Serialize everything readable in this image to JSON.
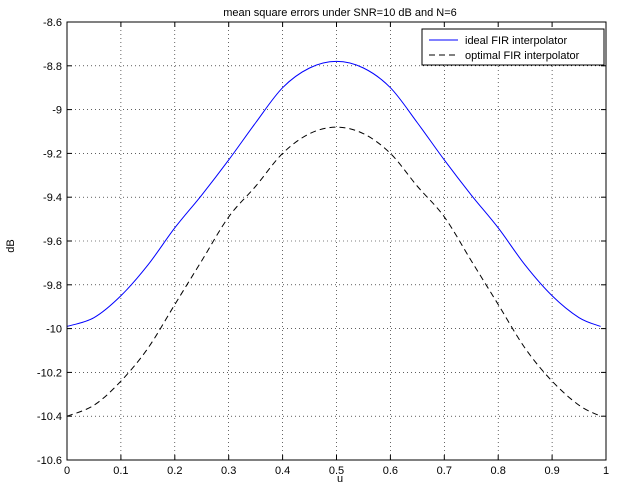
{
  "chart_data": {
    "type": "line",
    "title": "mean square errors under SNR=10 dB and N=6",
    "xlabel": "u",
    "ylabel": "dB",
    "xlim": [
      0,
      1
    ],
    "ylim": [
      -10.6,
      -8.6
    ],
    "xticks": [
      0,
      0.1,
      0.2,
      0.3,
      0.4,
      0.5,
      0.6,
      0.7,
      0.8,
      0.9,
      1
    ],
    "xtick_labels": [
      "0",
      "0.1",
      "0.2",
      "0.3",
      "0.4",
      "0.5",
      "0.6",
      "0.7",
      "0.8",
      "0.9",
      "1"
    ],
    "yticks": [
      -8.6,
      -8.8,
      -9,
      -9.2,
      -9.4,
      -9.6,
      -9.8,
      -10,
      -10.2,
      -10.4,
      -10.6
    ],
    "ytick_labels": [
      "-8.6",
      "-8.8",
      "-9",
      "-9.2",
      "-9.4",
      "-9.6",
      "-9.8",
      "-10",
      "-10.2",
      "-10.4",
      "-10.6"
    ],
    "grid": true,
    "legend_position": "top-right",
    "series": [
      {
        "name": "ideal FIR interpolator",
        "color": "#0000ff",
        "style": "solid",
        "x": [
          0,
          0.05,
          0.1,
          0.15,
          0.2,
          0.25,
          0.3,
          0.35,
          0.4,
          0.45,
          0.5,
          0.55,
          0.6,
          0.65,
          0.7,
          0.75,
          0.8,
          0.85,
          0.9,
          0.95,
          0.99
        ],
        "y": [
          -9.99,
          -9.95,
          -9.85,
          -9.71,
          -9.54,
          -9.39,
          -9.23,
          -9.06,
          -8.9,
          -8.81,
          -8.78,
          -8.81,
          -8.9,
          -9.06,
          -9.23,
          -9.39,
          -9.54,
          -9.71,
          -9.85,
          -9.95,
          -9.99
        ]
      },
      {
        "name": "optimal FIR interpolator",
        "color": "#000000",
        "style": "dashed",
        "x": [
          0,
          0.05,
          0.1,
          0.15,
          0.2,
          0.25,
          0.3,
          0.35,
          0.4,
          0.45,
          0.5,
          0.55,
          0.6,
          0.65,
          0.7,
          0.75,
          0.8,
          0.85,
          0.9,
          0.95,
          0.99
        ],
        "y": [
          -10.4,
          -10.35,
          -10.24,
          -10.09,
          -9.89,
          -9.69,
          -9.49,
          -9.35,
          -9.2,
          -9.11,
          -9.08,
          -9.11,
          -9.2,
          -9.35,
          -9.49,
          -9.69,
          -9.89,
          -10.09,
          -10.24,
          -10.35,
          -10.4
        ]
      }
    ]
  }
}
